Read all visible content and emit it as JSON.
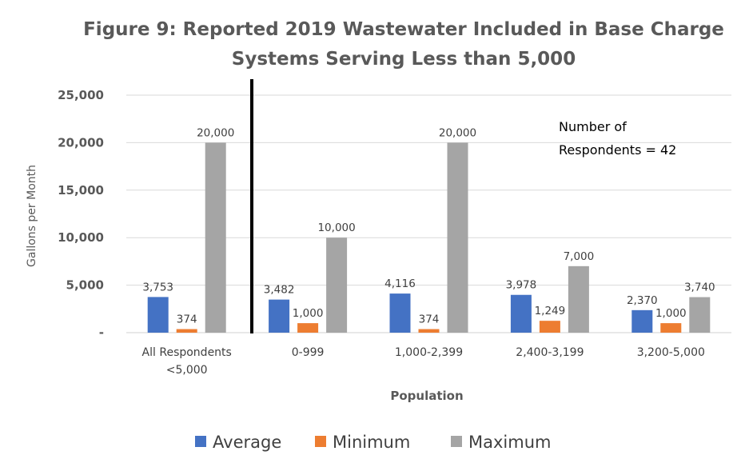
{
  "chart_data": {
    "type": "bar",
    "title_line1": "Figure 9: Reported 2019 Wastewater Included in Base Charge",
    "title_line2": "Systems Serving Less than 5,000",
    "xlabel": "Population",
    "ylabel": "Gallons per Month",
    "ylim": [
      0,
      25000
    ],
    "yticks": [
      0,
      5000,
      10000,
      15000,
      20000,
      25000
    ],
    "ytick_labels": [
      "-",
      "5,000",
      "10,000",
      "15,000",
      "20,000",
      "25,000"
    ],
    "grid": true,
    "legend_position": "bottom",
    "categories": [
      [
        "All Respondents",
        "<5,000"
      ],
      [
        "0-999"
      ],
      [
        "1,000-2,399"
      ],
      [
        "2,400-3,199"
      ],
      [
        "3,200-5,000"
      ]
    ],
    "series": [
      {
        "name": "Average",
        "color": "#4472C4",
        "values": [
          3753,
          3482,
          4116,
          3978,
          2370
        ],
        "labels": [
          "3,753",
          "3,482",
          "4,116",
          "3,978",
          "2,370"
        ]
      },
      {
        "name": "Minimum",
        "color": "#ED7D31",
        "values": [
          374,
          1000,
          374,
          1249,
          1000
        ],
        "labels": [
          "374",
          "1,000",
          "374",
          "1,249",
          "1,000"
        ]
      },
      {
        "name": "Maximum",
        "color": "#A5A5A5",
        "values": [
          20000,
          10000,
          20000,
          7000,
          3740
        ],
        "labels": [
          "20,000",
          "10,000",
          "20,000",
          "7,000",
          "3,740"
        ]
      }
    ],
    "annotation": [
      "Number of",
      "Respondents = 42"
    ]
  }
}
